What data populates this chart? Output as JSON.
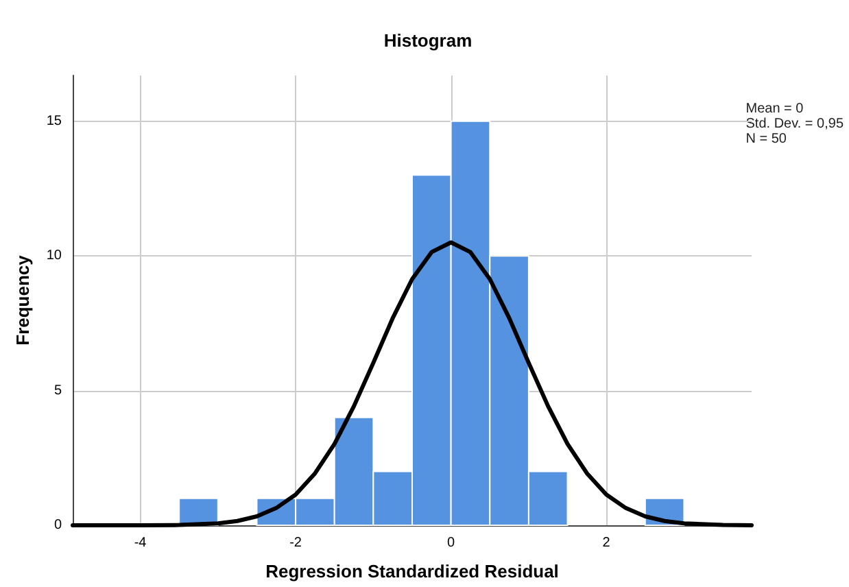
{
  "chart_data": {
    "type": "histogram",
    "title": "Histogram",
    "xlabel": "Regression Standardized Residual",
    "ylabel": "Frequency",
    "bins": [
      -3.5,
      -3,
      -2.5,
      -2,
      -1.5,
      -1,
      -0.5,
      0,
      0.5,
      1,
      1.5,
      2,
      2.5,
      3
    ],
    "values": [
      1,
      0,
      1,
      1,
      4,
      2,
      13,
      15,
      10,
      2,
      0,
      0,
      1
    ],
    "color": "#5592e0",
    "series": [
      {
        "type": "line",
        "color": "#000000",
        "x": [
          -4.87,
          -4,
          -3.5,
          -3,
          -2.75,
          -2.5,
          -2.25,
          -2,
          -1.75,
          -1.5,
          -1.25,
          -1,
          -0.75,
          -0.5,
          -0.25,
          0,
          0.25,
          0.5,
          0.75,
          1,
          1.25,
          1.5,
          1.75,
          2,
          2.25,
          2.5,
          2.75,
          3,
          3.5,
          3.87
        ],
        "values": [
          0,
          0,
          0.01,
          0.07,
          0.16,
          0.33,
          0.64,
          1.14,
          1.93,
          3.02,
          4.42,
          6.03,
          7.69,
          9.14,
          10.14,
          10.5,
          10.14,
          9.14,
          7.69,
          6.03,
          4.42,
          3.02,
          1.93,
          1.14,
          0.64,
          0.33,
          0.16,
          0.07,
          0.01,
          0
        ]
      }
    ],
    "xlim": [
      -4.87,
      3.87
    ],
    "xticks": [
      -4,
      -2,
      0,
      2
    ],
    "ylim": [
      0,
      16.7
    ],
    "yticks": [
      0,
      5,
      10,
      15
    ],
    "grid": true,
    "legend": false,
    "marker": "none",
    "line_style": "solid",
    "annotations": [
      "Mean = 0",
      "Std. Dev. = 0,95",
      "N = 50"
    ]
  }
}
